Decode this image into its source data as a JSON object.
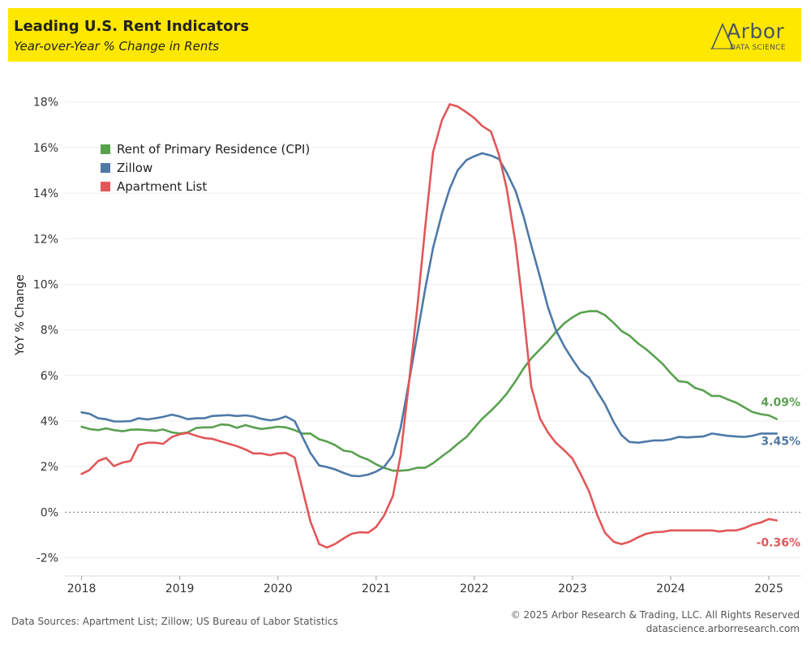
{
  "header": {
    "title": "Leading U.S. Rent Indicators",
    "subtitle": "Year-over-Year % Change in Rents",
    "logo_text": "Arbor",
    "logo_subtext": "DATA SCIENCE"
  },
  "footer": {
    "sources": "Data Sources: Apartment List; Zillow; US Bureau of Labor Statistics",
    "copyright": "© 2025 Arbor Research & Trading, LLC. All Rights Reserved",
    "url": "datascience.arborresearch.com"
  },
  "colors": {
    "header_bg": "#FFE800",
    "cpi": "#59A14F",
    "zillow": "#4E79A7",
    "apartment_list": "#E15759"
  },
  "chart_data": {
    "type": "line",
    "title": "Leading U.S. Rent Indicators",
    "subtitle": "Year-over-Year % Change in Rents",
    "ylabel": "YoY % Change",
    "xlabel": "",
    "ylim": [
      -2.8,
      19.2
    ],
    "xlim": [
      2017.83,
      2025.33
    ],
    "y_ticks": [
      -2,
      0,
      2,
      4,
      6,
      8,
      10,
      12,
      14,
      16,
      18
    ],
    "y_tick_labels": [
      "-2%",
      "0%",
      "2%",
      "4%",
      "6%",
      "8%",
      "10%",
      "12%",
      "14%",
      "16%",
      "18%"
    ],
    "x_ticks": [
      2018,
      2019,
      2020,
      2021,
      2022,
      2023,
      2024,
      2025
    ],
    "x_tick_labels": [
      "2018",
      "2019",
      "2020",
      "2021",
      "2022",
      "2023",
      "2024",
      "2025"
    ],
    "zero_line": true,
    "grid": "horizontal",
    "legend_position": "top-left",
    "series": [
      {
        "name": "Rent of Primary Residence (CPI)",
        "color": "#59A14F",
        "end_label": "4.09%",
        "points": [
          [
            2018.0,
            3.75
          ],
          [
            2018.08,
            3.65
          ],
          [
            2018.17,
            3.6
          ],
          [
            2018.25,
            3.68
          ],
          [
            2018.33,
            3.6
          ],
          [
            2018.42,
            3.55
          ],
          [
            2018.5,
            3.62
          ],
          [
            2018.58,
            3.63
          ],
          [
            2018.67,
            3.6
          ],
          [
            2018.75,
            3.57
          ],
          [
            2018.83,
            3.63
          ],
          [
            2018.92,
            3.5
          ],
          [
            2019.0,
            3.45
          ],
          [
            2019.08,
            3.5
          ],
          [
            2019.17,
            3.7
          ],
          [
            2019.25,
            3.72
          ],
          [
            2019.33,
            3.72
          ],
          [
            2019.42,
            3.85
          ],
          [
            2019.5,
            3.83
          ],
          [
            2019.58,
            3.7
          ],
          [
            2019.67,
            3.82
          ],
          [
            2019.75,
            3.72
          ],
          [
            2019.83,
            3.65
          ],
          [
            2019.92,
            3.7
          ],
          [
            2020.0,
            3.75
          ],
          [
            2020.08,
            3.72
          ],
          [
            2020.17,
            3.6
          ],
          [
            2020.25,
            3.45
          ],
          [
            2020.33,
            3.45
          ],
          [
            2020.42,
            3.2
          ],
          [
            2020.5,
            3.1
          ],
          [
            2020.58,
            2.95
          ],
          [
            2020.67,
            2.7
          ],
          [
            2020.75,
            2.65
          ],
          [
            2020.83,
            2.45
          ],
          [
            2020.92,
            2.3
          ],
          [
            2021.0,
            2.1
          ],
          [
            2021.08,
            1.95
          ],
          [
            2021.17,
            1.82
          ],
          [
            2021.25,
            1.82
          ],
          [
            2021.33,
            1.85
          ],
          [
            2021.42,
            1.95
          ],
          [
            2021.5,
            1.95
          ],
          [
            2021.58,
            2.15
          ],
          [
            2021.67,
            2.45
          ],
          [
            2021.75,
            2.7
          ],
          [
            2021.83,
            3.0
          ],
          [
            2021.92,
            3.3
          ],
          [
            2022.0,
            3.7
          ],
          [
            2022.08,
            4.1
          ],
          [
            2022.17,
            4.45
          ],
          [
            2022.25,
            4.8
          ],
          [
            2022.33,
            5.2
          ],
          [
            2022.42,
            5.75
          ],
          [
            2022.5,
            6.3
          ],
          [
            2022.58,
            6.75
          ],
          [
            2022.67,
            7.15
          ],
          [
            2022.75,
            7.5
          ],
          [
            2022.83,
            7.9
          ],
          [
            2022.92,
            8.3
          ],
          [
            2023.0,
            8.55
          ],
          [
            2023.08,
            8.75
          ],
          [
            2023.17,
            8.82
          ],
          [
            2023.25,
            8.82
          ],
          [
            2023.33,
            8.65
          ],
          [
            2023.42,
            8.3
          ],
          [
            2023.5,
            7.95
          ],
          [
            2023.58,
            7.75
          ],
          [
            2023.67,
            7.4
          ],
          [
            2023.75,
            7.15
          ],
          [
            2023.83,
            6.85
          ],
          [
            2023.92,
            6.5
          ],
          [
            2024.0,
            6.1
          ],
          [
            2024.08,
            5.75
          ],
          [
            2024.17,
            5.7
          ],
          [
            2024.25,
            5.45
          ],
          [
            2024.33,
            5.35
          ],
          [
            2024.42,
            5.1
          ],
          [
            2024.5,
            5.1
          ],
          [
            2024.58,
            4.95
          ],
          [
            2024.67,
            4.8
          ],
          [
            2024.75,
            4.6
          ],
          [
            2024.83,
            4.4
          ],
          [
            2024.92,
            4.3
          ],
          [
            2025.0,
            4.25
          ],
          [
            2025.08,
            4.09
          ]
        ]
      },
      {
        "name": "Zillow",
        "color": "#4E79A7",
        "end_label": "3.45%",
        "points": [
          [
            2018.0,
            4.38
          ],
          [
            2018.08,
            4.32
          ],
          [
            2018.17,
            4.12
          ],
          [
            2018.25,
            4.08
          ],
          [
            2018.33,
            3.98
          ],
          [
            2018.42,
            3.98
          ],
          [
            2018.5,
            4.0
          ],
          [
            2018.58,
            4.12
          ],
          [
            2018.67,
            4.07
          ],
          [
            2018.75,
            4.12
          ],
          [
            2018.83,
            4.18
          ],
          [
            2018.92,
            4.28
          ],
          [
            2019.0,
            4.2
          ],
          [
            2019.08,
            4.08
          ],
          [
            2019.17,
            4.12
          ],
          [
            2019.25,
            4.12
          ],
          [
            2019.33,
            4.22
          ],
          [
            2019.42,
            4.24
          ],
          [
            2019.5,
            4.26
          ],
          [
            2019.58,
            4.22
          ],
          [
            2019.67,
            4.25
          ],
          [
            2019.75,
            4.2
          ],
          [
            2019.83,
            4.1
          ],
          [
            2019.92,
            4.03
          ],
          [
            2020.0,
            4.08
          ],
          [
            2020.08,
            4.2
          ],
          [
            2020.17,
            4.0
          ],
          [
            2020.25,
            3.3
          ],
          [
            2020.33,
            2.6
          ],
          [
            2020.42,
            2.05
          ],
          [
            2020.5,
            1.98
          ],
          [
            2020.58,
            1.88
          ],
          [
            2020.67,
            1.72
          ],
          [
            2020.75,
            1.6
          ],
          [
            2020.83,
            1.58
          ],
          [
            2020.92,
            1.65
          ],
          [
            2021.0,
            1.78
          ],
          [
            2021.08,
            1.98
          ],
          [
            2021.17,
            2.5
          ],
          [
            2021.25,
            3.7
          ],
          [
            2021.33,
            5.6
          ],
          [
            2021.42,
            7.8
          ],
          [
            2021.5,
            9.8
          ],
          [
            2021.58,
            11.6
          ],
          [
            2021.67,
            13.1
          ],
          [
            2021.75,
            14.2
          ],
          [
            2021.83,
            15.0
          ],
          [
            2021.92,
            15.45
          ],
          [
            2022.0,
            15.62
          ],
          [
            2022.08,
            15.75
          ],
          [
            2022.17,
            15.65
          ],
          [
            2022.25,
            15.5
          ],
          [
            2022.33,
            14.9
          ],
          [
            2022.42,
            14.1
          ],
          [
            2022.5,
            13.0
          ],
          [
            2022.58,
            11.7
          ],
          [
            2022.67,
            10.3
          ],
          [
            2022.75,
            9.0
          ],
          [
            2022.83,
            8.0
          ],
          [
            2022.92,
            7.25
          ],
          [
            2023.0,
            6.7
          ],
          [
            2023.08,
            6.2
          ],
          [
            2023.17,
            5.9
          ],
          [
            2023.25,
            5.3
          ],
          [
            2023.33,
            4.75
          ],
          [
            2023.42,
            3.95
          ],
          [
            2023.5,
            3.38
          ],
          [
            2023.58,
            3.08
          ],
          [
            2023.67,
            3.05
          ],
          [
            2023.75,
            3.1
          ],
          [
            2023.83,
            3.15
          ],
          [
            2023.92,
            3.15
          ],
          [
            2024.0,
            3.2
          ],
          [
            2024.08,
            3.3
          ],
          [
            2024.17,
            3.28
          ],
          [
            2024.25,
            3.3
          ],
          [
            2024.33,
            3.32
          ],
          [
            2024.42,
            3.45
          ],
          [
            2024.5,
            3.4
          ],
          [
            2024.58,
            3.35
          ],
          [
            2024.67,
            3.32
          ],
          [
            2024.75,
            3.3
          ],
          [
            2024.83,
            3.35
          ],
          [
            2024.92,
            3.45
          ],
          [
            2025.0,
            3.45
          ],
          [
            2025.08,
            3.45
          ]
        ]
      },
      {
        "name": "Apartment List",
        "color": "#E15759",
        "end_label": "-0.36%",
        "points": [
          [
            2018.0,
            1.68
          ],
          [
            2018.08,
            1.85
          ],
          [
            2018.17,
            2.25
          ],
          [
            2018.25,
            2.38
          ],
          [
            2018.33,
            2.02
          ],
          [
            2018.42,
            2.18
          ],
          [
            2018.5,
            2.25
          ],
          [
            2018.58,
            2.95
          ],
          [
            2018.67,
            3.05
          ],
          [
            2018.75,
            3.05
          ],
          [
            2018.83,
            3.0
          ],
          [
            2018.92,
            3.3
          ],
          [
            2019.0,
            3.42
          ],
          [
            2019.08,
            3.48
          ],
          [
            2019.17,
            3.35
          ],
          [
            2019.25,
            3.25
          ],
          [
            2019.33,
            3.22
          ],
          [
            2019.42,
            3.1
          ],
          [
            2019.5,
            3.0
          ],
          [
            2019.58,
            2.9
          ],
          [
            2019.67,
            2.75
          ],
          [
            2019.75,
            2.58
          ],
          [
            2019.83,
            2.58
          ],
          [
            2019.92,
            2.5
          ],
          [
            2020.0,
            2.58
          ],
          [
            2020.08,
            2.6
          ],
          [
            2020.17,
            2.4
          ],
          [
            2020.25,
            1.0
          ],
          [
            2020.33,
            -0.4
          ],
          [
            2020.42,
            -1.4
          ],
          [
            2020.5,
            -1.55
          ],
          [
            2020.58,
            -1.4
          ],
          [
            2020.67,
            -1.15
          ],
          [
            2020.75,
            -0.95
          ],
          [
            2020.83,
            -0.88
          ],
          [
            2020.92,
            -0.9
          ],
          [
            2021.0,
            -0.65
          ],
          [
            2021.08,
            -0.15
          ],
          [
            2021.17,
            0.7
          ],
          [
            2021.25,
            2.5
          ],
          [
            2021.33,
            5.5
          ],
          [
            2021.42,
            9.0
          ],
          [
            2021.5,
            12.5
          ],
          [
            2021.58,
            15.8
          ],
          [
            2021.67,
            17.2
          ],
          [
            2021.75,
            17.9
          ],
          [
            2021.83,
            17.8
          ],
          [
            2021.92,
            17.55
          ],
          [
            2022.0,
            17.3
          ],
          [
            2022.08,
            16.95
          ],
          [
            2022.17,
            16.7
          ],
          [
            2022.25,
            15.7
          ],
          [
            2022.33,
            14.2
          ],
          [
            2022.42,
            11.8
          ],
          [
            2022.5,
            8.8
          ],
          [
            2022.58,
            5.5
          ],
          [
            2022.67,
            4.1
          ],
          [
            2022.75,
            3.5
          ],
          [
            2022.83,
            3.05
          ],
          [
            2022.92,
            2.7
          ],
          [
            2023.0,
            2.35
          ],
          [
            2023.08,
            1.7
          ],
          [
            2023.17,
            0.9
          ],
          [
            2023.25,
            -0.1
          ],
          [
            2023.33,
            -0.9
          ],
          [
            2023.42,
            -1.3
          ],
          [
            2023.5,
            -1.4
          ],
          [
            2023.58,
            -1.3
          ],
          [
            2023.67,
            -1.1
          ],
          [
            2023.75,
            -0.95
          ],
          [
            2023.83,
            -0.88
          ],
          [
            2023.92,
            -0.86
          ],
          [
            2024.0,
            -0.8
          ],
          [
            2024.08,
            -0.8
          ],
          [
            2024.17,
            -0.8
          ],
          [
            2024.25,
            -0.8
          ],
          [
            2024.33,
            -0.8
          ],
          [
            2024.42,
            -0.8
          ],
          [
            2024.5,
            -0.85
          ],
          [
            2024.58,
            -0.8
          ],
          [
            2024.67,
            -0.8
          ],
          [
            2024.75,
            -0.7
          ],
          [
            2024.83,
            -0.55
          ],
          [
            2024.92,
            -0.45
          ],
          [
            2025.0,
            -0.3
          ],
          [
            2025.08,
            -0.36
          ]
        ]
      }
    ]
  }
}
